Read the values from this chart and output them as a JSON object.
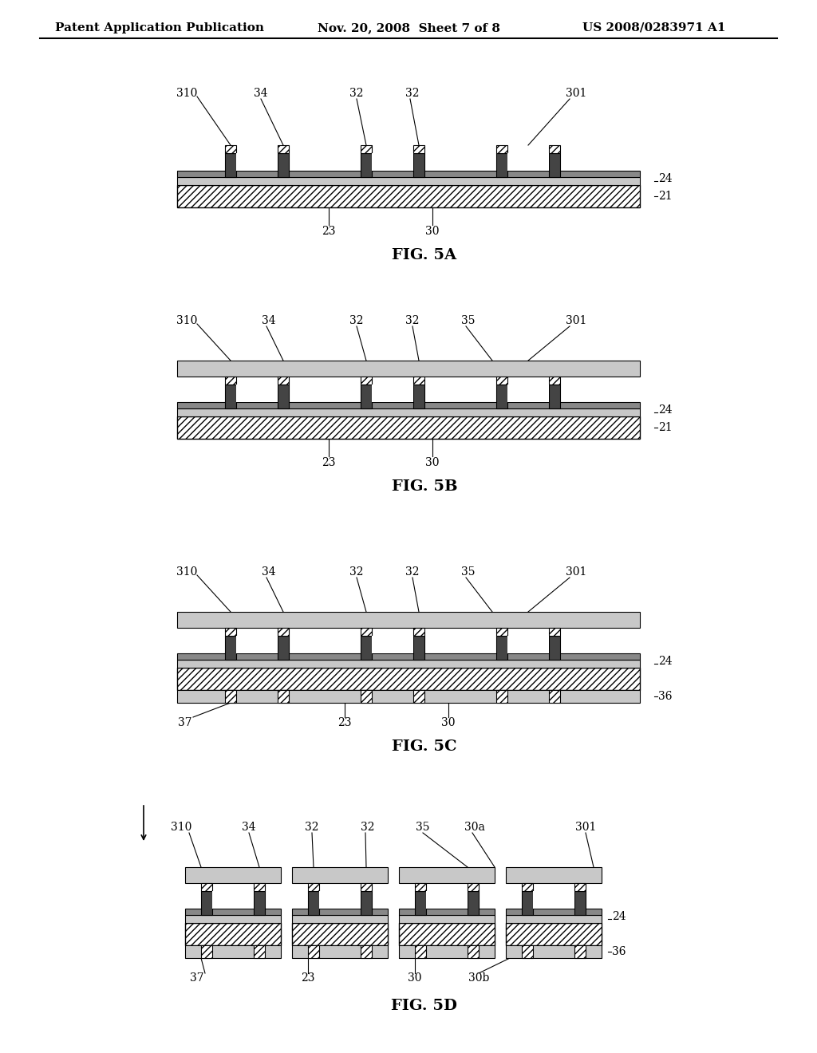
{
  "bg_color": "#ffffff",
  "header_left": "Patent Application Publication",
  "header_mid": "Nov. 20, 2008  Sheet 7 of 8",
  "header_right": "US 2008/0283971 A1",
  "figures": [
    "FIG. 5A",
    "FIG. 5B",
    "FIG. 5C",
    "FIG. 5D"
  ],
  "fig_labels": {
    "5A": {
      "labels": [
        "310",
        "34",
        "32",
        "32",
        "301",
        "24",
        "21",
        "23",
        "30"
      ]
    },
    "5B": {
      "labels": [
        "310",
        "34",
        "32",
        "32",
        "35",
        "301",
        "24",
        "21",
        "23",
        "30"
      ]
    },
    "5C": {
      "labels": [
        "310",
        "34",
        "32",
        "32",
        "35",
        "301",
        "24",
        "36",
        "37",
        "23",
        "30"
      ]
    },
    "5D": {
      "labels": [
        "310",
        "34",
        "32",
        "32",
        "35",
        "30a",
        "301",
        "24",
        "36",
        "37",
        "23",
        "30",
        "30b"
      ]
    }
  },
  "line_color": "#000000",
  "hatch_color": "#000000",
  "fill_light": "#e8e8e8",
  "fill_dark": "#555555",
  "fill_dotted": "#cccccc"
}
